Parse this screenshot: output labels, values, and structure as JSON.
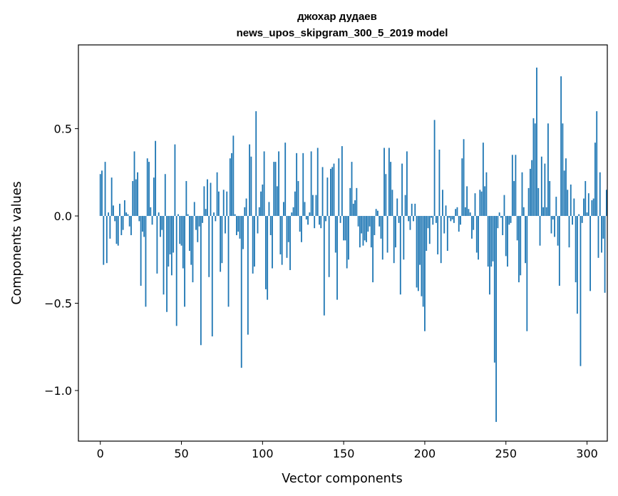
{
  "chart_data": {
    "type": "bar",
    "title": "джохар дудаев",
    "subtitle": "news_upos_skipgram_300_5_2019 model",
    "xlabel": "Vector components",
    "ylabel": "Components values",
    "xlim": [
      -13.5,
      312.5
    ],
    "ylim": [
      -1.29,
      0.98
    ],
    "xticks": [
      0,
      50,
      100,
      150,
      200,
      250,
      300
    ],
    "xtick_labels": [
      "0",
      "50",
      "100",
      "150",
      "200",
      "250",
      "300"
    ],
    "yticks": [
      -1.0,
      -0.5,
      0.0,
      0.5
    ],
    "ytick_labels": [
      "−1.0",
      "−0.5",
      "0.0",
      "0.5"
    ],
    "bar_color": "#1f77b4",
    "x_start": 0,
    "values": [
      0.24,
      0.26,
      -0.28,
      0.31,
      -0.27,
      0.02,
      -0.13,
      0.22,
      0.06,
      -0.03,
      -0.16,
      -0.17,
      0.07,
      -0.11,
      -0.08,
      0.09,
      0.02,
      0.01,
      -0.06,
      -0.11,
      0.2,
      0.37,
      0.21,
      0.25,
      -0.03,
      -0.4,
      -0.09,
      -0.12,
      -0.52,
      0.33,
      0.31,
      0.05,
      -0.05,
      0.22,
      0.43,
      -0.33,
      0.02,
      -0.12,
      -0.08,
      -0.45,
      0.24,
      -0.55,
      -0.29,
      -0.22,
      -0.34,
      -0.21,
      0.41,
      -0.63,
      0.01,
      -0.16,
      -0.17,
      -0.3,
      -0.52,
      0.2,
      0.01,
      -0.2,
      -0.28,
      -0.38,
      0.08,
      -0.08,
      -0.15,
      -0.06,
      -0.74,
      -0.04,
      0.17,
      0.04,
      0.21,
      -0.35,
      0.19,
      -0.69,
      0.02,
      -0.03,
      0.25,
      0.14,
      -0.32,
      -0.27,
      0.15,
      -0.1,
      0.14,
      -0.52,
      0.33,
      0.36,
      0.46,
      0.01,
      -0.11,
      -0.09,
      -0.13,
      -0.87,
      -0.19,
      0.05,
      0.1,
      -0.68,
      0.41,
      0.34,
      -0.33,
      -0.29,
      0.6,
      -0.1,
      0.05,
      0.14,
      0.18,
      0.37,
      -0.42,
      -0.48,
      0.08,
      -0.11,
      -0.3,
      0.31,
      0.31,
      0.17,
      0.37,
      -0.22,
      -0.28,
      0.08,
      0.42,
      -0.24,
      -0.15,
      -0.31,
      0.02,
      0.05,
      0.14,
      0.36,
      0.2,
      -0.09,
      -0.15,
      0.36,
      0.08,
      -0.02,
      -0.05,
      0.02,
      0.37,
      0.12,
      -0.07,
      0.12,
      0.39,
      -0.05,
      -0.07,
      0.28,
      -0.57,
      -0.03,
      0.22,
      -0.35,
      0.27,
      0.28,
      0.3,
      -0.21,
      -0.48,
      0.33,
      -0.04,
      0.4,
      -0.14,
      -0.14,
      -0.3,
      -0.25,
      0.16,
      0.31,
      0.07,
      0.09,
      0.16,
      -0.06,
      -0.18,
      -0.1,
      -0.17,
      -0.14,
      -0.15,
      -0.09,
      -0.06,
      -0.18,
      -0.38,
      -0.11,
      0.04,
      0.03,
      -0.06,
      -0.13,
      -0.25,
      0.39,
      0.24,
      -0.21,
      0.39,
      0.31,
      0.15,
      -0.27,
      -0.18,
      0.1,
      -0.04,
      -0.45,
      0.3,
      -0.25,
      0.12,
      0.37,
      -0.03,
      -0.08,
      0.07,
      -0.03,
      0.07,
      -0.41,
      -0.43,
      -0.28,
      -0.46,
      -0.52,
      -0.66,
      -0.2,
      -0.07,
      -0.16,
      -0.01,
      -0.05,
      0.55,
      -0.04,
      -0.22,
      0.38,
      -0.27,
      0.15,
      -0.1,
      0.06,
      -0.2,
      -0.01,
      -0.03,
      -0.02,
      -0.04,
      0.04,
      0.05,
      -0.09,
      -0.05,
      0.33,
      0.44,
      0.05,
      0.17,
      0.04,
      0.02,
      -0.13,
      -0.08,
      0.13,
      -0.21,
      -0.25,
      0.15,
      0.14,
      0.42,
      0.17,
      0.25,
      -0.29,
      -0.45,
      -0.29,
      -0.26,
      -0.84,
      -1.18,
      -0.07,
      0.02,
      -0.01,
      -0.11,
      0.12,
      -0.23,
      -0.29,
      -0.05,
      -0.04,
      0.35,
      0.2,
      0.35,
      -0.14,
      -0.38,
      -0.34,
      0.25,
      0.05,
      -0.27,
      -0.66,
      0.16,
      0.27,
      0.32,
      0.56,
      0.53,
      0.85,
      0.16,
      -0.17,
      0.34,
      0.05,
      0.3,
      0.05,
      0.53,
      0.2,
      -0.1,
      -0.02,
      -0.12,
      0.11,
      -0.17,
      -0.4,
      0.8,
      0.53,
      0.26,
      0.33,
      0.15,
      -0.18,
      0.18,
      -0.05,
      0.1,
      -0.38,
      -0.56,
      0.01,
      -0.86,
      -0.04,
      0.1,
      0.2,
      0.02,
      0.13,
      -0.43,
      0.09,
      0.1,
      0.42,
      0.6,
      -0.24,
      0.25,
      -0.21,
      -0.13,
      -0.44,
      0.15
    ]
  }
}
